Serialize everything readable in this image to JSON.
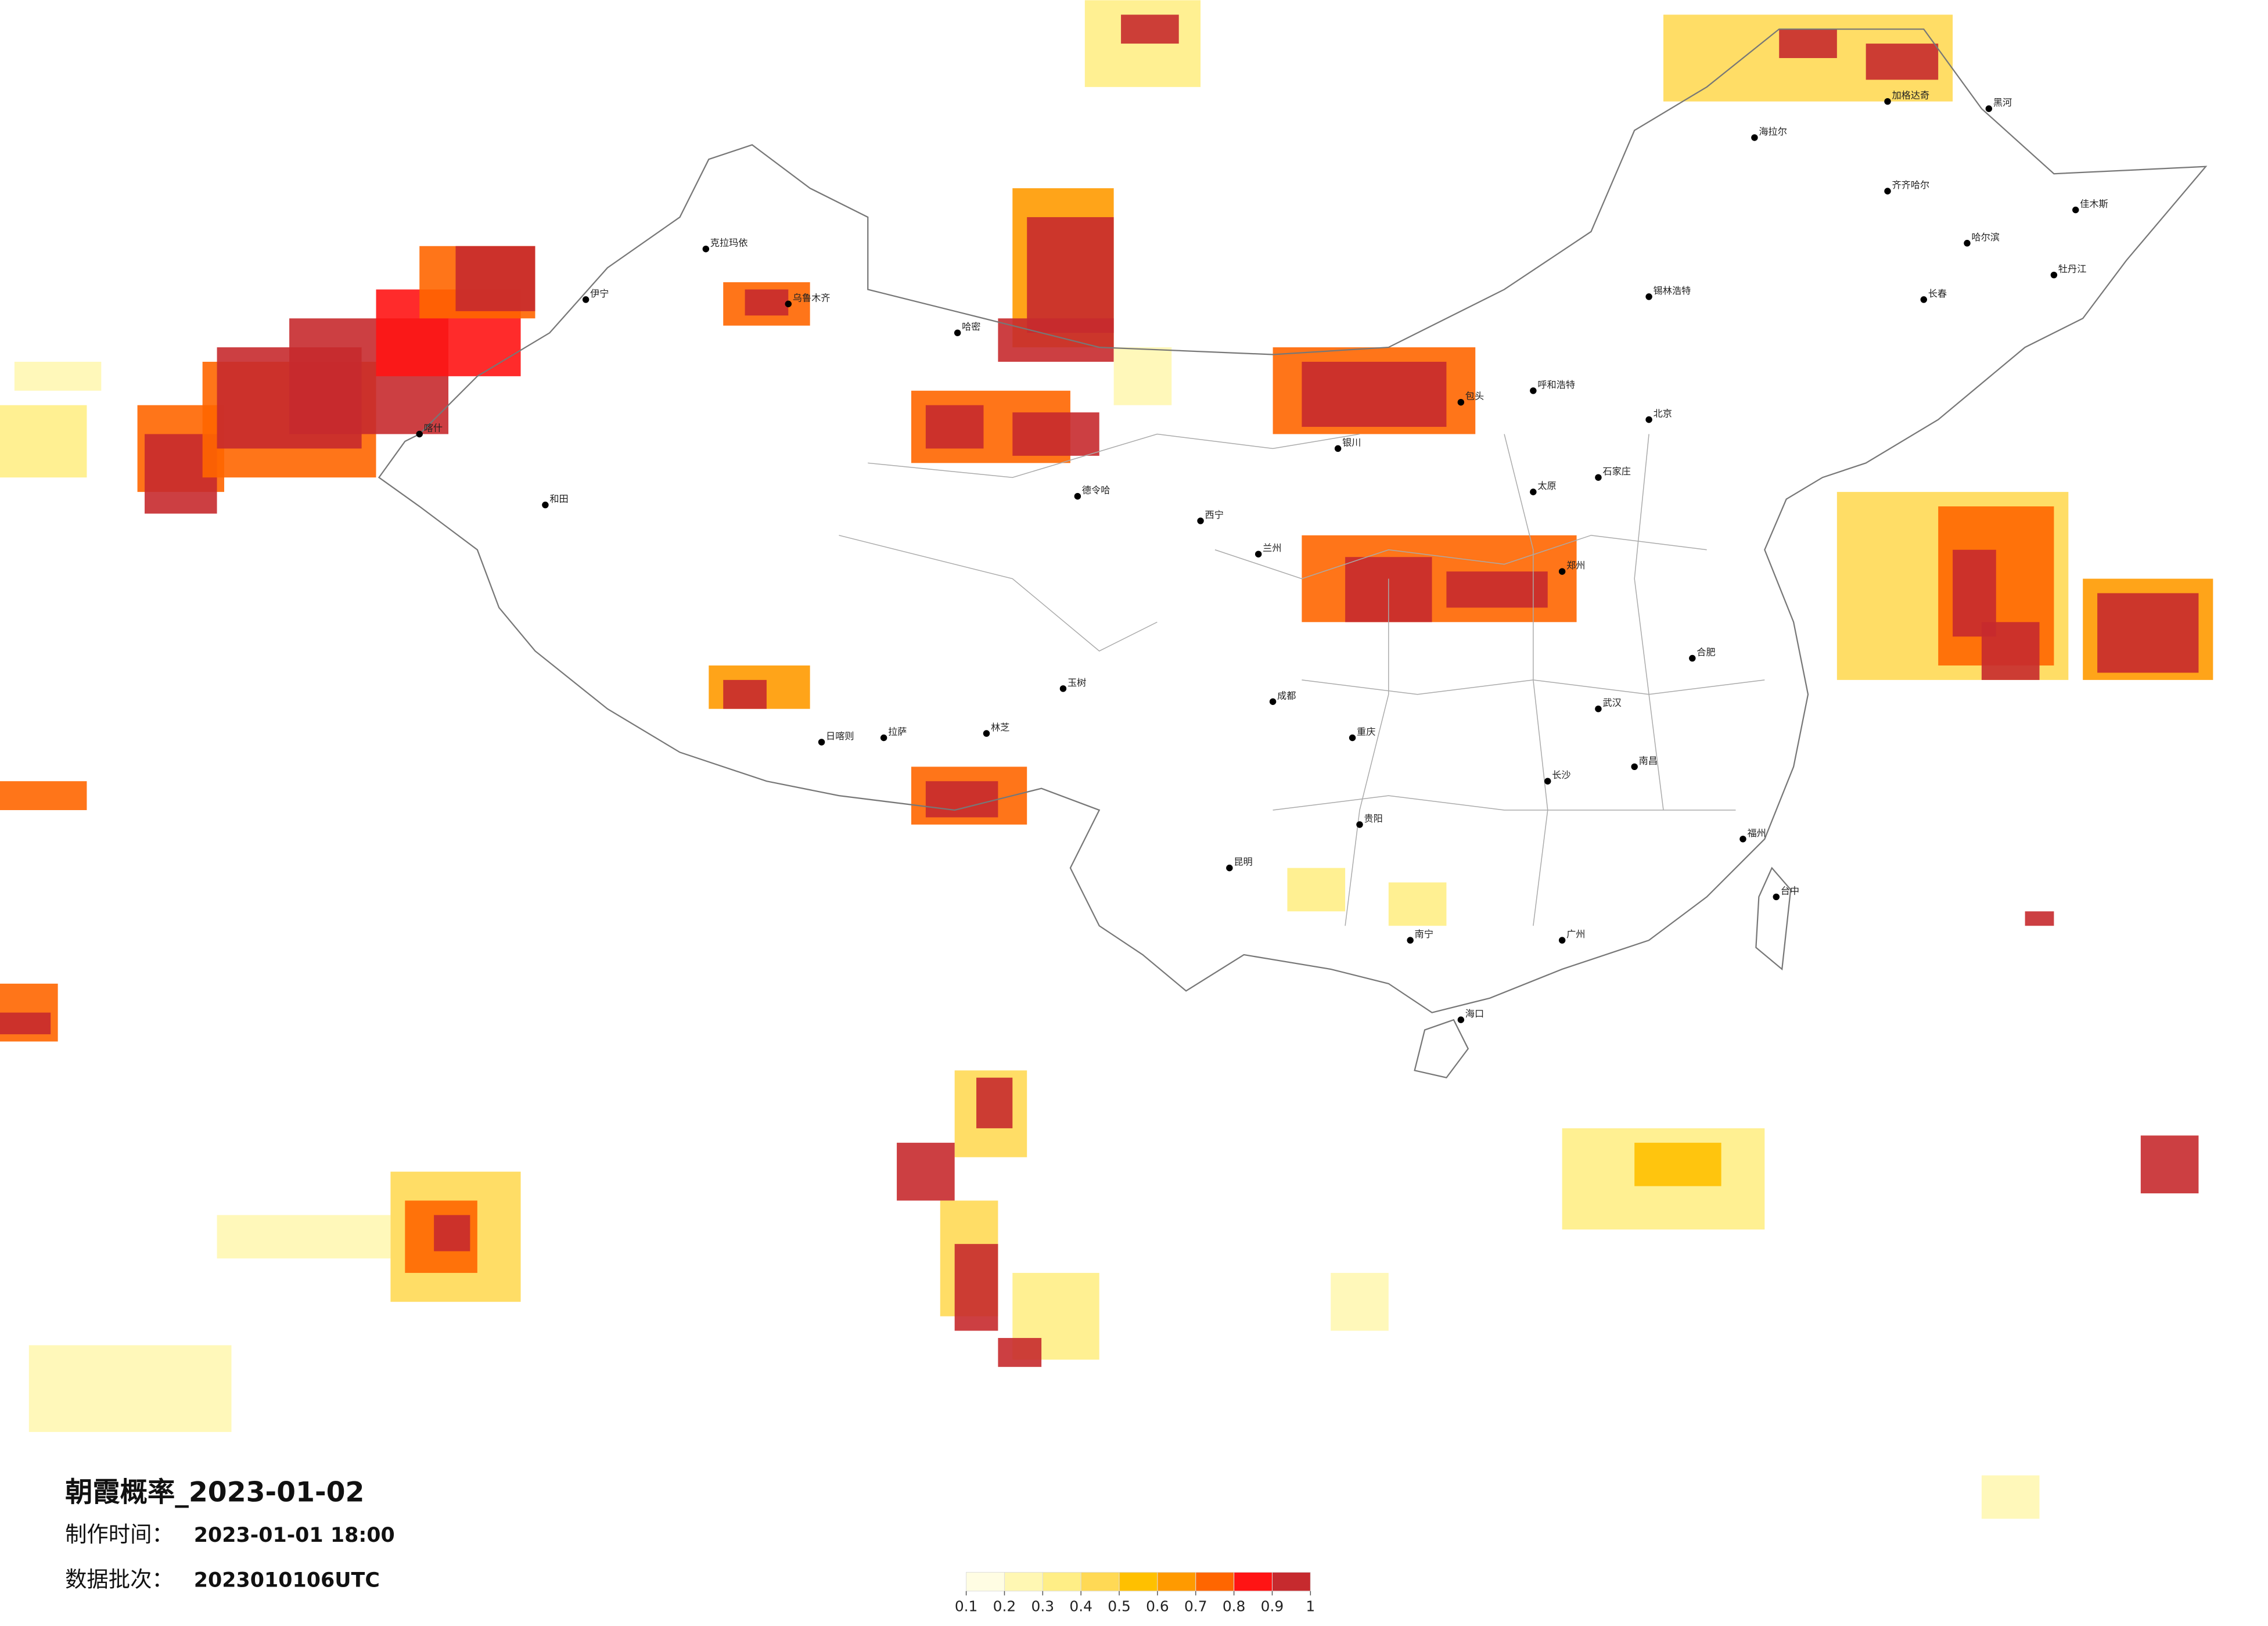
{
  "title": "朝霞概率_2023-01-02",
  "info": [
    {
      "label": "制作时间：",
      "value": "2023-01-01 18:00"
    },
    {
      "label": "数据批次：",
      "value": "2023010106UTC"
    }
  ],
  "legend": {
    "colors": [
      "#fffde3",
      "#fff7b3",
      "#ffee86",
      "#ffd955",
      "#ffc000",
      "#ff9a00",
      "#ff6600",
      "#ff1414",
      "#c62a2e"
    ],
    "ticks": [
      0.1,
      0.2,
      0.3,
      0.4,
      0.5,
      0.6,
      0.7,
      0.8,
      0.9,
      1
    ]
  },
  "cities": [
    {
      "name": "乌鲁木齐"
    },
    {
      "name": "克拉玛依"
    },
    {
      "name": "伊宁"
    },
    {
      "name": "喀什"
    },
    {
      "name": "和田"
    },
    {
      "name": "哈密"
    },
    {
      "name": "拉萨"
    },
    {
      "name": "日喀则"
    },
    {
      "name": "林芝"
    },
    {
      "name": "西宁"
    },
    {
      "name": "兰州"
    },
    {
      "name": "银川"
    },
    {
      "name": "呼和浩特"
    },
    {
      "name": "包头"
    },
    {
      "name": "锡林浩特"
    },
    {
      "name": "海拉尔"
    },
    {
      "name": "加格达奇"
    },
    {
      "name": "黑河"
    },
    {
      "name": "齐齐哈尔"
    },
    {
      "name": "哈尔滨"
    },
    {
      "name": "佳木斯"
    },
    {
      "name": "牡丹江"
    },
    {
      "name": "长春"
    },
    {
      "name": "北京"
    },
    {
      "name": "石家庄"
    },
    {
      "name": "太原"
    },
    {
      "name": "郑州"
    },
    {
      "name": "合肥"
    },
    {
      "name": "武汉"
    },
    {
      "name": "长沙"
    },
    {
      "name": "南昌"
    },
    {
      "name": "福州"
    },
    {
      "name": "台中"
    },
    {
      "name": "广州"
    },
    {
      "name": "南宁"
    },
    {
      "name": "海口"
    },
    {
      "name": "贵阳"
    },
    {
      "name": "昆明"
    },
    {
      "name": "成都"
    },
    {
      "name": "重庆"
    },
    {
      "name": "德令哈"
    },
    {
      "name": "玉树"
    }
  ]
}
